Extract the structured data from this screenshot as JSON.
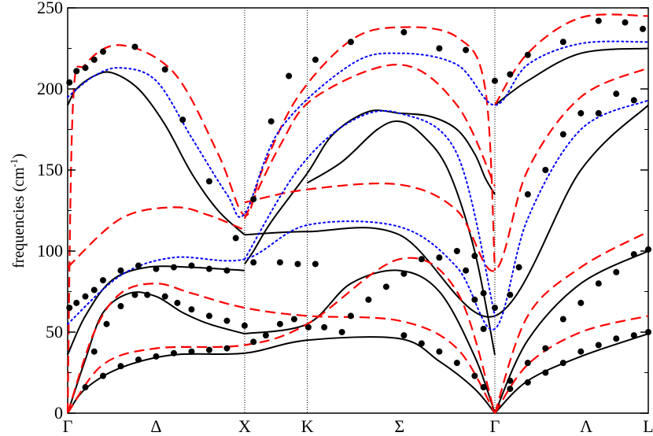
{
  "chart_data": {
    "type": "line",
    "title": "",
    "xlabel": "",
    "ylabel": "frequencies (cm",
    "ylabel_sup": "-1",
    "ylabel_close": ")",
    "ylim": [
      0,
      250
    ],
    "xlim": [
      0,
      5.45
    ],
    "yticks": [
      0,
      50,
      100,
      150,
      200,
      250
    ],
    "xticks": [
      {
        "x": 0.0,
        "label": "Γ"
      },
      {
        "x": 0.5,
        "label": "Δ"
      },
      {
        "x": 1.0,
        "label": "X"
      },
      {
        "x": 1.354,
        "label": "K"
      },
      {
        "x": 1.875,
        "label": "Σ"
      },
      {
        "x": 2.414,
        "label": "Γ"
      },
      {
        "x": 2.93,
        "label": "Λ"
      },
      {
        "x": 3.281,
        "label": "L"
      }
    ],
    "vlines": [
      1.0,
      1.354,
      2.414
    ],
    "grid": false,
    "legend": "none",
    "styles": {
      "black": {
        "color": "#000000",
        "dash": "",
        "width": 2
      },
      "red": {
        "color": "#ff0000",
        "dash": "13,7",
        "width": 2.2
      },
      "blue": {
        "color": "#0000ff",
        "dash": "2,4",
        "width": 2
      },
      "points": {
        "color": "#000000",
        "radius": 4
      }
    },
    "series": [
      {
        "style": "black",
        "points": [
          [
            0,
            190
          ],
          [
            0.05,
            200
          ],
          [
            0.15,
            208
          ],
          [
            0.25,
            210
          ],
          [
            0.4,
            200
          ],
          [
            0.55,
            178
          ],
          [
            0.7,
            148
          ],
          [
            0.85,
            125
          ],
          [
            1,
            110
          ]
        ]
      },
      {
        "style": "black",
        "points": [
          [
            1,
            92
          ],
          [
            1.05,
            100
          ],
          [
            1.15,
            118
          ],
          [
            1.354,
            148
          ],
          [
            1.5,
            172
          ],
          [
            1.7,
            186
          ],
          [
            1.875,
            185
          ],
          [
            2.05,
            183
          ],
          [
            2.2,
            175
          ],
          [
            2.3,
            160
          ],
          [
            2.36,
            145
          ],
          [
            2.414,
            135
          ]
        ]
      },
      {
        "style": "black",
        "points": [
          [
            1.354,
            142
          ],
          [
            1.55,
            155
          ],
          [
            1.75,
            175
          ],
          [
            1.875,
            180
          ],
          [
            2.0,
            172
          ],
          [
            2.15,
            150
          ],
          [
            2.3,
            100
          ],
          [
            2.414,
            36
          ]
        ]
      },
      {
        "style": "black",
        "points": [
          [
            1,
            110
          ],
          [
            1.354,
            112
          ],
          [
            1.875,
            110
          ],
          [
            2.414,
            60
          ],
          [
            2.9,
            150
          ],
          [
            3.281,
            190
          ]
        ]
      },
      {
        "style": "black",
        "points": [
          [
            2.414,
            190
          ],
          [
            2.6,
            205
          ],
          [
            2.9,
            222
          ],
          [
            3.281,
            225
          ]
        ]
      },
      {
        "style": "black",
        "points": [
          [
            0,
            36
          ],
          [
            0.1,
            60
          ],
          [
            0.25,
            82
          ],
          [
            0.45,
            90
          ],
          [
            0.7,
            90
          ],
          [
            1,
            88
          ]
        ]
      },
      {
        "style": "black",
        "points": [
          [
            0,
            0
          ],
          [
            0.1,
            33
          ],
          [
            0.2,
            62
          ],
          [
            0.35,
            74
          ],
          [
            0.5,
            72
          ],
          [
            0.65,
            62
          ],
          [
            0.8,
            55
          ],
          [
            1,
            49
          ]
        ]
      },
      {
        "style": "black",
        "points": [
          [
            0,
            0
          ],
          [
            0.1,
            15
          ],
          [
            0.3,
            28
          ],
          [
            0.6,
            36
          ],
          [
            1,
            37
          ],
          [
            1.354,
            45
          ],
          [
            1.875,
            46
          ],
          [
            2.1,
            32
          ],
          [
            2.3,
            15
          ],
          [
            2.414,
            0
          ]
        ]
      },
      {
        "style": "black",
        "points": [
          [
            1,
            49
          ],
          [
            1.354,
            55
          ],
          [
            1.6,
            80
          ],
          [
            1.875,
            88
          ],
          [
            2.1,
            75
          ],
          [
            2.3,
            35
          ],
          [
            2.414,
            0
          ]
        ]
      },
      {
        "style": "black",
        "points": [
          [
            2.414,
            0
          ],
          [
            2.6,
            20
          ],
          [
            2.9,
            35
          ],
          [
            3.281,
            49
          ]
        ]
      },
      {
        "style": "black",
        "points": [
          [
            2.414,
            0
          ],
          [
            2.6,
            45
          ],
          [
            2.9,
            80
          ],
          [
            3.281,
            100
          ]
        ]
      },
      {
        "style": "red",
        "points": [
          [
            0,
            90
          ],
          [
            0.3,
            120
          ],
          [
            0.6,
            127
          ],
          [
            0.8,
            122
          ],
          [
            1,
            113
          ]
        ]
      },
      {
        "style": "red",
        "points": [
          [
            1,
            130
          ],
          [
            1.354,
            138
          ],
          [
            1.875,
            141
          ],
          [
            2.2,
            125
          ],
          [
            2.414,
            88
          ],
          [
            2.6,
            150
          ],
          [
            2.9,
            195
          ],
          [
            3.281,
            213
          ]
        ]
      },
      {
        "style": "red",
        "points": [
          [
            0,
            0
          ],
          [
            0.03,
            190
          ],
          [
            0.1,
            215
          ],
          [
            0.3,
            227
          ],
          [
            0.6,
            210
          ],
          [
            0.85,
            160
          ],
          [
            1,
            122
          ],
          [
            1.1,
            150
          ],
          [
            1.3,
            195
          ],
          [
            1.6,
            230
          ],
          [
            1.875,
            238
          ],
          [
            2.2,
            232
          ],
          [
            2.36,
            200
          ],
          [
            2.414,
            88
          ]
        ]
      },
      {
        "style": "red",
        "points": [
          [
            2.414,
            190
          ],
          [
            2.6,
            222
          ],
          [
            2.9,
            244
          ],
          [
            3.281,
            245
          ]
        ]
      },
      {
        "style": "red",
        "points": [
          [
            1,
            120
          ],
          [
            1.2,
            165
          ],
          [
            1.4,
            195
          ],
          [
            1.875,
            215
          ],
          [
            2.2,
            190
          ],
          [
            2.414,
            140
          ]
        ]
      },
      {
        "style": "red",
        "points": [
          [
            0,
            0
          ],
          [
            0.15,
            50
          ],
          [
            0.3,
            74
          ],
          [
            0.5,
            80
          ],
          [
            0.7,
            74
          ],
          [
            1,
            65
          ],
          [
            1.354,
            60
          ],
          [
            1.875,
            57
          ],
          [
            2.2,
            40
          ],
          [
            2.414,
            0
          ]
        ]
      },
      {
        "style": "red",
        "points": [
          [
            0,
            0
          ],
          [
            0.2,
            30
          ],
          [
            0.5,
            40
          ],
          [
            1,
            42
          ],
          [
            1.354,
            55
          ],
          [
            1.875,
            95
          ],
          [
            2.2,
            75
          ],
          [
            2.414,
            0
          ]
        ]
      },
      {
        "style": "red",
        "points": [
          [
            2.414,
            0
          ],
          [
            2.6,
            60
          ],
          [
            2.9,
            90
          ],
          [
            3.281,
            112
          ]
        ]
      },
      {
        "style": "red",
        "points": [
          [
            2.414,
            0
          ],
          [
            2.6,
            30
          ],
          [
            2.9,
            50
          ],
          [
            3.281,
            60
          ]
        ]
      },
      {
        "style": "blue",
        "points": [
          [
            0,
            55
          ],
          [
            0.3,
            85
          ],
          [
            0.6,
            96
          ],
          [
            1,
            95
          ],
          [
            1.354,
            116
          ],
          [
            1.875,
            115
          ],
          [
            2.2,
            90
          ],
          [
            2.414,
            52
          ],
          [
            2.6,
            120
          ],
          [
            2.9,
            175
          ],
          [
            3.281,
            193
          ]
        ]
      },
      {
        "style": "blue",
        "points": [
          [
            0,
            195
          ],
          [
            0.15,
            208
          ],
          [
            0.3,
            213
          ],
          [
            0.5,
            205
          ],
          [
            0.7,
            170
          ],
          [
            0.9,
            135
          ],
          [
            1,
            123
          ],
          [
            1.2,
            175
          ],
          [
            1.6,
            215
          ],
          [
            1.875,
            222
          ],
          [
            2.2,
            215
          ],
          [
            2.414,
            190
          ],
          [
            2.6,
            215
          ],
          [
            2.9,
            228
          ],
          [
            3.281,
            229
          ]
        ]
      },
      {
        "style": "blue",
        "points": [
          [
            1,
            95
          ],
          [
            1.3,
            150
          ],
          [
            1.6,
            180
          ],
          [
            1.875,
            185
          ],
          [
            2.2,
            160
          ],
          [
            2.414,
            60
          ]
        ]
      }
    ],
    "scatter": [
      [
        0.01,
        204
      ],
      [
        0.05,
        211
      ],
      [
        0.1,
        213
      ],
      [
        0.15,
        218
      ],
      [
        0.2,
        223
      ],
      [
        0.38,
        226
      ],
      [
        0.55,
        212
      ],
      [
        0.65,
        181
      ],
      [
        0.8,
        143
      ],
      [
        0.95,
        108
      ],
      [
        0.01,
        65
      ],
      [
        0.05,
        68
      ],
      [
        0.1,
        72
      ],
      [
        0.15,
        76
      ],
      [
        0.2,
        82
      ],
      [
        0.3,
        88
      ],
      [
        0.4,
        91
      ],
      [
        0.5,
        89
      ],
      [
        0.6,
        90
      ],
      [
        0.7,
        91
      ],
      [
        0.8,
        89
      ],
      [
        0.9,
        88
      ],
      [
        0.15,
        38
      ],
      [
        0.22,
        55
      ],
      [
        0.3,
        66
      ],
      [
        0.38,
        73
      ],
      [
        0.45,
        73
      ],
      [
        0.55,
        72
      ],
      [
        0.62,
        68
      ],
      [
        0.7,
        64
      ],
      [
        0.8,
        60
      ],
      [
        0.9,
        57
      ],
      [
        1,
        54
      ],
      [
        0.1,
        16
      ],
      [
        0.2,
        23
      ],
      [
        0.3,
        29
      ],
      [
        0.4,
        33
      ],
      [
        0.5,
        35
      ],
      [
        0.6,
        37
      ],
      [
        0.7,
        38
      ],
      [
        0.8,
        39
      ],
      [
        0.9,
        40
      ],
      [
        1.05,
        44
      ],
      [
        1.12,
        48
      ],
      [
        1.2,
        55
      ],
      [
        1.28,
        58
      ],
      [
        1.36,
        53
      ],
      [
        1.45,
        53
      ],
      [
        1.55,
        50
      ],
      [
        1.05,
        132
      ],
      [
        1.15,
        180
      ],
      [
        1.25,
        208
      ],
      [
        1.4,
        218
      ],
      [
        1.6,
        229
      ],
      [
        1.9,
        235
      ],
      [
        2.1,
        225
      ],
      [
        2.25,
        224
      ],
      [
        1.05,
        93
      ],
      [
        1.2,
        93
      ],
      [
        1.3,
        92
      ],
      [
        1.4,
        92
      ],
      [
        1.6,
        60
      ],
      [
        1.7,
        70
      ],
      [
        1.8,
        78
      ],
      [
        1.9,
        86
      ],
      [
        2.0,
        95
      ],
      [
        2.1,
        96
      ],
      [
        2.2,
        100
      ],
      [
        2.3,
        97
      ],
      [
        2.35,
        74
      ],
      [
        1.9,
        48
      ],
      [
        2.0,
        43
      ],
      [
        2.1,
        38
      ],
      [
        2.2,
        31
      ],
      [
        2.3,
        23
      ],
      [
        2.35,
        16
      ],
      [
        2.25,
        88
      ],
      [
        2.3,
        70
      ],
      [
        2.35,
        52
      ],
      [
        2.414,
        65
      ],
      [
        2.414,
        205
      ],
      [
        2.5,
        73
      ],
      [
        2.55,
        90
      ],
      [
        2.6,
        135
      ],
      [
        2.7,
        150
      ],
      [
        2.8,
        172
      ],
      [
        2.9,
        185
      ],
      [
        3.0,
        185
      ],
      [
        3.1,
        197
      ],
      [
        3.2,
        193
      ],
      [
        2.5,
        209
      ],
      [
        2.6,
        221
      ],
      [
        2.8,
        229
      ],
      [
        3.0,
        242
      ],
      [
        3.15,
        241
      ],
      [
        3.25,
        237
      ],
      [
        2.5,
        20
      ],
      [
        2.6,
        31
      ],
      [
        2.7,
        40
      ],
      [
        2.8,
        58
      ],
      [
        2.9,
        68
      ],
      [
        3.0,
        80
      ],
      [
        3.1,
        87
      ],
      [
        3.2,
        98
      ],
      [
        3.281,
        101
      ],
      [
        2.5,
        15
      ],
      [
        2.6,
        19
      ],
      [
        2.7,
        25
      ],
      [
        2.8,
        31
      ],
      [
        2.9,
        38
      ],
      [
        3.0,
        42
      ],
      [
        3.1,
        46
      ],
      [
        3.2,
        48
      ],
      [
        3.281,
        50
      ]
    ]
  }
}
